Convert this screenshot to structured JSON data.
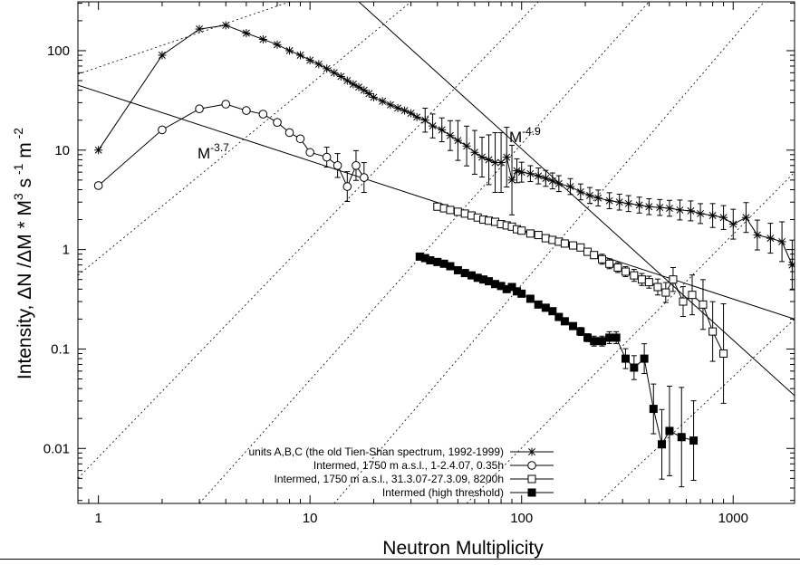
{
  "chart_data": {
    "type": "scatter",
    "title": "",
    "xlabel": "Neutron Multiplicity",
    "ylabel": {
      "prefix": "Intensity,",
      "formula": "ΔN /ΔM * M",
      "exp1": "3",
      "s_unit": "s",
      "exp2": "-1",
      "m_unit": "m",
      "exp3": "-2"
    },
    "x_scale": "log",
    "y_scale": "log",
    "xlim": [
      0.8,
      1950
    ],
    "ylim": [
      0.0028,
      310
    ],
    "x_ticks": [
      {
        "value": 1,
        "label": "1"
      },
      {
        "value": 10,
        "label": "10"
      },
      {
        "value": 100,
        "label": "100"
      },
      {
        "value": 1000,
        "label": "1000"
      }
    ],
    "y_ticks": [
      {
        "value": 0.01,
        "label": "0.01"
      },
      {
        "value": 0.1,
        "label": "0.1"
      },
      {
        "value": 1,
        "label": "1"
      },
      {
        "value": 10,
        "label": "10"
      },
      {
        "value": 100,
        "label": "100"
      }
    ],
    "grid": false,
    "legend_position": "bottom-center",
    "reference_lines": [
      {
        "label": "M",
        "exponent": "-3.7",
        "points": [
          [
            0.8,
            45
          ],
          [
            1950,
            0.2
          ]
        ]
      },
      {
        "label": "M",
        "exponent": "-4.9",
        "points": [
          [
            17,
            310
          ],
          [
            1950,
            0.034
          ]
        ]
      }
    ],
    "diagonal_guides": [
      [
        [
          0.8,
          58
        ],
        [
          8,
          310
        ]
      ],
      [
        [
          0.8,
          0.55
        ],
        [
          30,
          310
        ]
      ],
      [
        [
          0.8,
          0.005
        ],
        [
          120,
          310
        ]
      ],
      [
        [
          3,
          0.0028
        ],
        [
          400,
          310
        ]
      ],
      [
        [
          13,
          0.0028
        ],
        [
          1400,
          310
        ]
      ],
      [
        [
          55,
          0.0028
        ],
        [
          1950,
          6
        ]
      ],
      [
        [
          230,
          0.0028
        ],
        [
          1950,
          0.2
        ]
      ]
    ],
    "series": [
      {
        "name": "units A,B,C (the old Tien-Shan spectrum, 1992-1999)",
        "marker": "star",
        "x": [
          1,
          2,
          3,
          4,
          5,
          6,
          7,
          8,
          9,
          10,
          11,
          12,
          13,
          14,
          15,
          16,
          17,
          18,
          19,
          20,
          22,
          24,
          26,
          28,
          30,
          32,
          35,
          38,
          42,
          46,
          50,
          55,
          60,
          65,
          70,
          75,
          80,
          85,
          90,
          95,
          100,
          110,
          120,
          130,
          140,
          150,
          170,
          190,
          210,
          230,
          260,
          290,
          320,
          360,
          400,
          450,
          500,
          560,
          630,
          700,
          800,
          900,
          1000,
          1150,
          1300,
          1500,
          1700,
          1900
        ],
        "y": [
          10,
          90,
          165,
          180,
          150,
          130,
          115,
          100,
          90,
          80,
          73,
          66,
          60,
          55,
          50,
          46,
          43,
          40,
          37,
          34,
          31,
          28.5,
          26.5,
          25,
          23.5,
          21.5,
          20,
          17.5,
          16,
          14,
          12.5,
          11,
          9.5,
          8.5,
          8,
          7.5,
          7.5,
          8.5,
          5,
          6.2,
          6,
          5.8,
          5.5,
          5.2,
          4.9,
          4.6,
          4.3,
          3.8,
          3.5,
          3.3,
          3.1,
          3,
          2.9,
          2.8,
          2.7,
          2.65,
          2.6,
          2.5,
          2.45,
          2.3,
          2.2,
          2.1,
          1.8,
          2.1,
          1.4,
          1.3,
          1.2,
          0.7
        ],
        "error": [
          0,
          0,
          0,
          0,
          0,
          0,
          0,
          0,
          0,
          0,
          0,
          0,
          0,
          0,
          0,
          0,
          0,
          0,
          0,
          0,
          0,
          0,
          0,
          0,
          0,
          0,
          0.12,
          0.12,
          0.12,
          0.15,
          0.2,
          0.2,
          0.22,
          0.2,
          0.25,
          0.3,
          0.3,
          0.3,
          0.35,
          0.12,
          0.1,
          0.08,
          0.08,
          0.08,
          0.08,
          0.08,
          0.08,
          0.08,
          0.08,
          0.08,
          0.08,
          0.08,
          0.08,
          0.08,
          0.08,
          0.08,
          0.08,
          0.1,
          0.1,
          0.1,
          0.12,
          0.12,
          0.15,
          0.15,
          0.15,
          0.15,
          0.2,
          0.25
        ]
      },
      {
        "name": "Intermed, 1750 m a.s.l., 1-2.4.07, 0.35h",
        "marker": "circle-open",
        "x": [
          1,
          2,
          3,
          4,
          5,
          6,
          7,
          8,
          9,
          10,
          12,
          13.5,
          15,
          16.5,
          18
        ],
        "y": [
          4.4,
          16,
          26,
          29,
          25,
          23,
          19,
          15,
          13,
          9.5,
          8.5,
          7,
          4.3,
          7,
          5.3
        ],
        "error": [
          0,
          0,
          0,
          0,
          0,
          0,
          0,
          0,
          0,
          0,
          0.1,
          0.12,
          0.15,
          0.15,
          0.15
        ]
      },
      {
        "name": "Intermed, 1750 m a.s.l., 31.3.07-27.3.09, 8200h",
        "marker": "square-open",
        "x": [
          40,
          43,
          46,
          50,
          54,
          58,
          62,
          66,
          70,
          75,
          80,
          85,
          90,
          95,
          100,
          110,
          120,
          130,
          140,
          150,
          160,
          175,
          190,
          205,
          220,
          240,
          260,
          285,
          310,
          340,
          370,
          400,
          440,
          480,
          520,
          580,
          640,
          720,
          800,
          900
        ],
        "y": [
          2.7,
          2.6,
          2.5,
          2.4,
          2.3,
          2.2,
          2.1,
          2,
          1.95,
          1.9,
          1.8,
          1.75,
          1.7,
          1.6,
          1.55,
          1.45,
          1.4,
          1.3,
          1.25,
          1.2,
          1.15,
          1.1,
          1.05,
          0.95,
          0.88,
          0.8,
          0.72,
          0.66,
          0.6,
          0.55,
          0.5,
          0.47,
          0.42,
          0.37,
          0.5,
          0.3,
          0.35,
          0.28,
          0.15,
          0.09
        ],
        "error": [
          0,
          0,
          0,
          0,
          0,
          0,
          0,
          0,
          0,
          0,
          0,
          0,
          0,
          0,
          0,
          0,
          0,
          0,
          0,
          0,
          0,
          0,
          0,
          0,
          0,
          0.05,
          0.05,
          0.05,
          0.05,
          0.06,
          0.06,
          0.06,
          0.08,
          0.1,
          0.12,
          0.15,
          0.2,
          0.25,
          0.3,
          0.5
        ]
      },
      {
        "name": "Intermed (high threshold)",
        "marker": "square-filled",
        "x": [
          33,
          35,
          37,
          40,
          43,
          46,
          50,
          54,
          58,
          62,
          66,
          70,
          75,
          80,
          85,
          90,
          95,
          100,
          110,
          120,
          130,
          140,
          150,
          160,
          175,
          190,
          205,
          220,
          240,
          260,
          280,
          310,
          340,
          380,
          420,
          460,
          500,
          570,
          650
        ],
        "y": [
          0.85,
          0.82,
          0.78,
          0.75,
          0.72,
          0.68,
          0.62,
          0.58,
          0.55,
          0.52,
          0.5,
          0.48,
          0.45,
          0.43,
          0.4,
          0.42,
          0.38,
          0.36,
          0.32,
          0.28,
          0.26,
          0.24,
          0.21,
          0.19,
          0.17,
          0.15,
          0.13,
          0.12,
          0.12,
          0.13,
          0.13,
          0.08,
          0.065,
          0.08,
          0.025,
          0.011,
          0.015,
          0.013,
          0.012
        ],
        "error": [
          0,
          0,
          0,
          0,
          0,
          0,
          0,
          0,
          0,
          0,
          0,
          0,
          0,
          0,
          0,
          0,
          0,
          0,
          0,
          0,
          0,
          0,
          0,
          0,
          0,
          0.04,
          0.04,
          0.05,
          0.05,
          0.06,
          0.06,
          0.1,
          0.12,
          0.15,
          0.25,
          0.35,
          0.45,
          0.5,
          0.4
        ]
      }
    ]
  }
}
